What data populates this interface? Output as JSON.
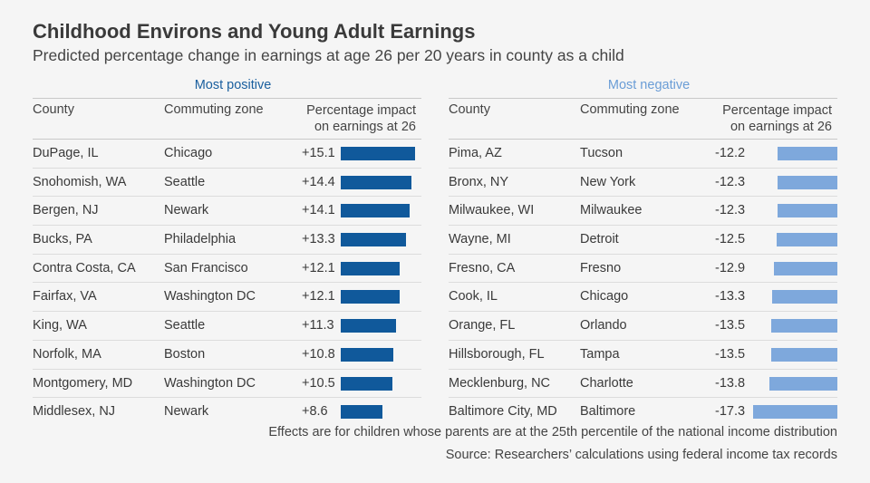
{
  "title": "Childhood Environs and Young Adult Earnings",
  "subtitle": "Predicted percentage change in earnings at age 26 per 20 years in county as a child",
  "colors": {
    "positive_bar": "#10599b",
    "negative_bar": "#7ea8dc",
    "positive_title": "#1a5f9e",
    "negative_title": "#6a9dd6"
  },
  "columns": {
    "county": "County",
    "zone": "Commuting zone",
    "impact_line1": "Percentage impact",
    "impact_line2": "on earnings at 26"
  },
  "chart_data": {
    "type": "table",
    "panels": [
      {
        "title": "Most positive",
        "rows": [
          {
            "county": "DuPage, IL",
            "zone": "Chicago",
            "value": 15.1,
            "label": "+15.1"
          },
          {
            "county": "Snohomish, WA",
            "zone": "Seattle",
            "value": 14.4,
            "label": "+14.4"
          },
          {
            "county": "Bergen, NJ",
            "zone": "Newark",
            "value": 14.1,
            "label": "+14.1"
          },
          {
            "county": "Bucks, PA",
            "zone": "Philadelphia",
            "value": 13.3,
            "label": "+13.3"
          },
          {
            "county": "Contra Costa, CA",
            "zone": "San Francisco",
            "value": 12.1,
            "label": "+12.1"
          },
          {
            "county": "Fairfax, VA",
            "zone": "Washington DC",
            "value": 12.1,
            "label": "+12.1"
          },
          {
            "county": "King, WA",
            "zone": "Seattle",
            "value": 11.3,
            "label": "+11.3"
          },
          {
            "county": "Norfolk, MA",
            "zone": "Boston",
            "value": 10.8,
            "label": "+10.8"
          },
          {
            "county": "Montgomery, MD",
            "zone": "Washington DC",
            "value": 10.5,
            "label": "+10.5"
          },
          {
            "county": "Middlesex, NJ",
            "zone": "Newark",
            "value": 8.6,
            "label": "+8.6"
          }
        ]
      },
      {
        "title": "Most negative",
        "rows": [
          {
            "county": "Pima, AZ",
            "zone": "Tucson",
            "value": -12.2,
            "label": "-12.2"
          },
          {
            "county": "Bronx, NY",
            "zone": "New York",
            "value": -12.3,
            "label": "-12.3"
          },
          {
            "county": "Milwaukee, WI",
            "zone": "Milwaukee",
            "value": -12.3,
            "label": "-12.3"
          },
          {
            "county": "Wayne, MI",
            "zone": "Detroit",
            "value": -12.5,
            "label": "-12.5"
          },
          {
            "county": "Fresno, CA",
            "zone": "Fresno",
            "value": -12.9,
            "label": "-12.9"
          },
          {
            "county": "Cook, IL",
            "zone": "Chicago",
            "value": -13.3,
            "label": "-13.3"
          },
          {
            "county": "Orange, FL",
            "zone": "Orlando",
            "value": -13.5,
            "label": "-13.5"
          },
          {
            "county": "Hillsborough, FL",
            "zone": "Tampa",
            "value": -13.5,
            "label": "-13.5"
          },
          {
            "county": "Mecklenburg, NC",
            "zone": "Charlotte",
            "value": -13.8,
            "label": "-13.8"
          },
          {
            "county": "Baltimore City, MD",
            "zone": "Baltimore",
            "value": -17.3,
            "label": "-17.3"
          }
        ]
      }
    ]
  },
  "notes": {
    "effects": "Effects are for children whose parents are at the 25th percentile of the national income distribution",
    "source": "Source: Researchers’ calculations using federal income tax records"
  }
}
